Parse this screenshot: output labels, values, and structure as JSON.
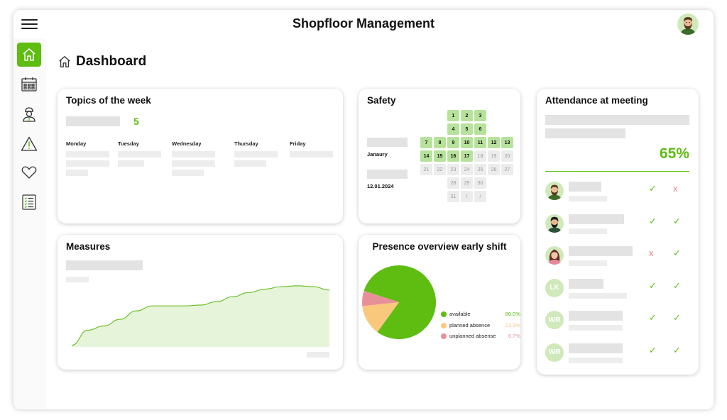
{
  "app": {
    "title": "Shopfloor Management"
  },
  "header": {
    "menu_icon": "hamburger-menu-icon",
    "user_avatar": "user-avatar-bearded-man"
  },
  "sidebar": {
    "items": [
      {
        "name": "home",
        "icon": "home-icon",
        "active": true
      },
      {
        "name": "calendar",
        "icon": "calendar-icon",
        "active": false
      },
      {
        "name": "employee",
        "icon": "worker-icon",
        "active": false
      },
      {
        "name": "safety-warning",
        "icon": "warning-triangle-icon",
        "active": false
      },
      {
        "name": "health",
        "icon": "heart-icon",
        "active": false
      },
      {
        "name": "checklist",
        "icon": "checklist-icon",
        "active": false
      }
    ],
    "accent_color": "#5ebd10"
  },
  "page": {
    "title": "Dashboard"
  },
  "topics": {
    "title": "Topics of the week",
    "count": "5",
    "days": [
      "Monday",
      "Tuesday",
      "Wednesday",
      "Thursday",
      "Friday"
    ]
  },
  "safety": {
    "title": "Safety",
    "month": "Janaury",
    "date": "12.01.2024",
    "calendar_rows": [
      [
        "",
        "",
        "1",
        "2",
        "3",
        "",
        ""
      ],
      [
        "",
        "",
        "4",
        "5",
        "6",
        "",
        ""
      ],
      [
        "7",
        "8",
        "9",
        "10",
        "11",
        "12",
        "13"
      ],
      [
        "14",
        "15",
        "16",
        "17",
        "18",
        "19",
        "20"
      ],
      [
        "21",
        "22",
        "23",
        "24",
        "25",
        "26",
        "27"
      ],
      [
        "",
        "",
        "28",
        "29",
        "30",
        "",
        ""
      ],
      [
        "",
        "",
        "31",
        "/",
        "/",
        "",
        ""
      ]
    ],
    "highlighted_through_day": 17,
    "highlight_color": "#b7e29b"
  },
  "attendance": {
    "title": "Attendance at meeting",
    "percentage": "65%",
    "attendees": [
      {
        "avatar": "avatar-bearded-man",
        "initials": "",
        "first": "present",
        "second": "absent"
      },
      {
        "avatar": "avatar-dark-hair-man",
        "initials": "",
        "first": "present",
        "second": "present"
      },
      {
        "avatar": "avatar-woman",
        "initials": "",
        "first": "absent",
        "second": "present"
      },
      {
        "avatar": "",
        "initials": "LK",
        "first": "present",
        "second": "present"
      },
      {
        "avatar": "",
        "initials": "WR",
        "first": "present",
        "second": "present"
      },
      {
        "avatar": "",
        "initials": "WR",
        "first": "present",
        "second": "present"
      }
    ],
    "check_symbol": "✓",
    "cross_symbol": "x"
  },
  "measures": {
    "title": "Measures",
    "chart_data": {
      "type": "area",
      "x": [
        1,
        2,
        3,
        4,
        5,
        6,
        7,
        8,
        9,
        10,
        11,
        12,
        13,
        14,
        15,
        16,
        17
      ],
      "values": [
        2,
        20,
        25,
        33,
        43,
        49,
        49,
        49,
        50,
        54,
        60,
        65,
        69,
        72,
        73,
        72,
        68
      ],
      "ylim": [
        0,
        100
      ],
      "fill_color": "#e6f5da",
      "line_color": "#6dc02a",
      "grid": false
    }
  },
  "presence": {
    "title": "Presence overview early shift",
    "chart_data": {
      "type": "pie",
      "categories": [
        "available",
        "planned absence",
        "unplanned absense"
      ],
      "values": [
        80.0,
        13.3,
        6.7
      ],
      "labels": [
        "80.0%",
        "13.3%",
        "6.7%"
      ],
      "colors": [
        "#5ebd10",
        "#fac87c",
        "#e89098"
      ],
      "legend": "right"
    }
  }
}
